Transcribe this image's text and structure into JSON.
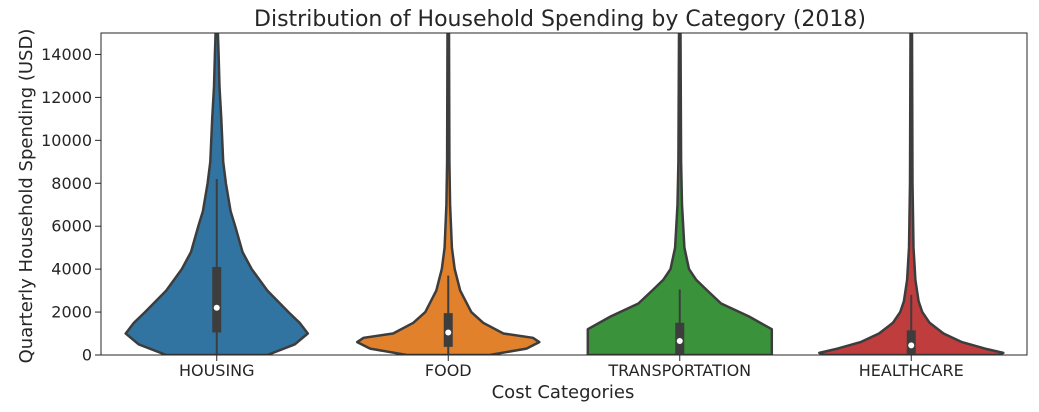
{
  "chart_data": {
    "type": "violin",
    "title": "Distribution of Household Spending by Category (2018)",
    "xlabel": "Cost Categories",
    "ylabel": "Quarterly Household Spending (USD)",
    "ylim": [
      0,
      15000
    ],
    "yticks": [
      0,
      2000,
      4000,
      6000,
      8000,
      10000,
      12000,
      14000
    ],
    "ytick_labels": [
      "0",
      "2000",
      "4000",
      "6000",
      "8000",
      "10000",
      "12000",
      "14000"
    ],
    "grid": false,
    "categories": [
      "HOUSING",
      "FOOD",
      "TRANSPORTATION",
      "HEALTHCARE"
    ],
    "colors": [
      "#3274a1",
      "#e1812c",
      "#3a923a",
      "#c03d3e"
    ],
    "series": [
      {
        "category": "HOUSING",
        "median": 2200,
        "q1": 1050,
        "q3": 4100,
        "whisker_low": 0,
        "whisker_high": 8200,
        "density": [
          [
            0,
            0.55
          ],
          [
            500,
            0.85
          ],
          [
            1000,
            0.99
          ],
          [
            1500,
            0.9
          ],
          [
            2000,
            0.78
          ],
          [
            3000,
            0.55
          ],
          [
            4000,
            0.38
          ],
          [
            4800,
            0.28
          ],
          [
            6000,
            0.2
          ],
          [
            6700,
            0.15
          ],
          [
            8000,
            0.1
          ],
          [
            9000,
            0.07
          ],
          [
            11000,
            0.05
          ],
          [
            12500,
            0.03
          ],
          [
            14000,
            0.02
          ],
          [
            15000,
            0.013
          ]
        ]
      },
      {
        "category": "FOOD",
        "median": 1050,
        "q1": 380,
        "q3": 1950,
        "whisker_low": 0,
        "whisker_high": 3700,
        "density": [
          [
            0,
            0.45
          ],
          [
            300,
            0.85
          ],
          [
            600,
            0.99
          ],
          [
            800,
            0.92
          ],
          [
            1000,
            0.6
          ],
          [
            1500,
            0.38
          ],
          [
            2000,
            0.25
          ],
          [
            3000,
            0.13
          ],
          [
            4000,
            0.07
          ],
          [
            5000,
            0.04
          ],
          [
            7000,
            0.02
          ],
          [
            9000,
            0.013
          ],
          [
            15000,
            0.008
          ]
        ]
      },
      {
        "category": "TRANSPORTATION",
        "median": 650,
        "q1": 0,
        "q3": 1500,
        "whisker_low": 0,
        "whisker_high": 3050,
        "density": [
          [
            0,
            1.0
          ],
          [
            600,
            1.0
          ],
          [
            1200,
            1.0
          ],
          [
            1800,
            0.75
          ],
          [
            2400,
            0.45
          ],
          [
            3000,
            0.3
          ],
          [
            3500,
            0.18
          ],
          [
            4000,
            0.1
          ],
          [
            5000,
            0.05
          ],
          [
            7000,
            0.025
          ],
          [
            9000,
            0.015
          ],
          [
            15000,
            0.008
          ]
        ]
      },
      {
        "category": "HEALTHCARE",
        "median": 450,
        "q1": 0,
        "q3": 1150,
        "whisker_low": 0,
        "whisker_high": 2800,
        "density": [
          [
            0,
            0.95
          ],
          [
            100,
            1.0
          ],
          [
            300,
            0.8
          ],
          [
            600,
            0.55
          ],
          [
            1000,
            0.35
          ],
          [
            1500,
            0.2
          ],
          [
            2000,
            0.12
          ],
          [
            2500,
            0.08
          ],
          [
            3500,
            0.045
          ],
          [
            5000,
            0.025
          ],
          [
            8000,
            0.014
          ],
          [
            15000,
            0.008
          ]
        ]
      }
    ]
  }
}
